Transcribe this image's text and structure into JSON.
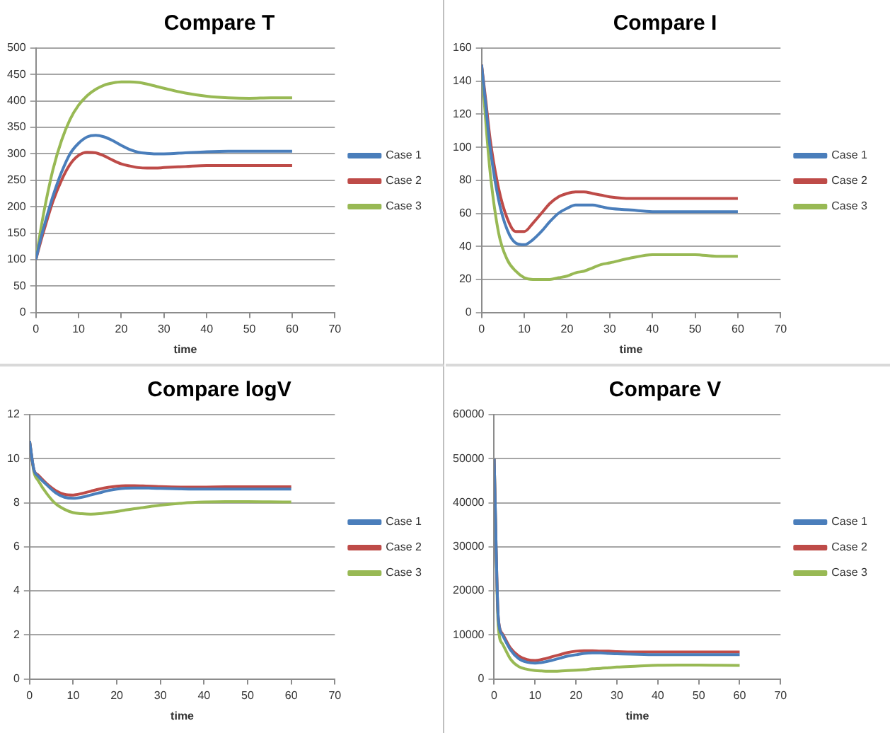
{
  "chart_data": [
    {
      "type": "line",
      "title": "Compare T",
      "xlabel": "time",
      "x": [
        0,
        1,
        2,
        4,
        6,
        8,
        10,
        12,
        14,
        16,
        18,
        20,
        22,
        24,
        26,
        28,
        30,
        35,
        40,
        45,
        50,
        55,
        60
      ],
      "xlim": [
        0,
        70
      ],
      "xticks": [
        0,
        10,
        20,
        30,
        40,
        50,
        60,
        70
      ],
      "ylim": [
        0,
        500
      ],
      "yticks": [
        0,
        50,
        100,
        150,
        200,
        250,
        300,
        350,
        400,
        450,
        500
      ],
      "grid": "y",
      "legend": "right",
      "series": [
        {
          "name": "Case 1",
          "color": "#4a7ebb",
          "values": [
            100,
            135,
            165,
            220,
            265,
            300,
            320,
            332,
            335,
            332,
            325,
            316,
            308,
            303,
            301,
            300,
            300,
            302,
            304,
            305,
            305,
            305,
            305
          ]
        },
        {
          "name": "Case 2",
          "color": "#be4b48",
          "values": [
            100,
            130,
            158,
            210,
            250,
            280,
            297,
            303,
            302,
            296,
            288,
            281,
            277,
            274,
            273,
            273,
            274,
            276,
            278,
            278,
            278,
            278,
            278
          ]
        },
        {
          "name": "Case 3",
          "color": "#98b954",
          "values": [
            100,
            150,
            195,
            270,
            325,
            365,
            392,
            410,
            422,
            430,
            434,
            436,
            436,
            435,
            432,
            428,
            424,
            415,
            409,
            406,
            405,
            406,
            406
          ]
        }
      ]
    },
    {
      "type": "line",
      "title": "Compare I",
      "xlabel": "time",
      "x": [
        0,
        1,
        2,
        4,
        6,
        8,
        10,
        12,
        14,
        16,
        18,
        20,
        22,
        24,
        26,
        28,
        30,
        35,
        40,
        45,
        50,
        55,
        60
      ],
      "xlim": [
        0,
        70
      ],
      "xticks": [
        0,
        10,
        20,
        30,
        40,
        50,
        60,
        70
      ],
      "ylim": [
        0,
        160
      ],
      "yticks": [
        0,
        20,
        40,
        60,
        80,
        100,
        120,
        140,
        160
      ],
      "grid": "y",
      "legend": "right",
      "series": [
        {
          "name": "Case 1",
          "color": "#4a7ebb",
          "values": [
            150,
            125,
            100,
            68,
            50,
            42,
            41,
            44,
            49,
            55,
            60,
            63,
            65,
            65,
            65,
            64,
            63,
            62,
            61,
            61,
            61,
            61,
            61
          ]
        },
        {
          "name": "Case 2",
          "color": "#be4b48",
          "values": [
            150,
            128,
            105,
            75,
            57,
            49,
            49,
            54,
            60,
            66,
            70,
            72,
            73,
            73,
            72,
            71,
            70,
            69,
            69,
            69,
            69,
            69,
            69
          ]
        },
        {
          "name": "Case 3",
          "color": "#98b954",
          "values": [
            150,
            115,
            85,
            48,
            32,
            25,
            21,
            20,
            20,
            20,
            21,
            22,
            24,
            25,
            27,
            29,
            30,
            33,
            35,
            35,
            35,
            34,
            34
          ]
        }
      ]
    },
    {
      "type": "line",
      "title": "Compare logV",
      "xlabel": "time",
      "x": [
        0,
        1,
        2,
        4,
        6,
        8,
        10,
        12,
        14,
        16,
        18,
        20,
        22,
        24,
        26,
        28,
        30,
        35,
        40,
        45,
        50,
        55,
        60
      ],
      "xlim": [
        0,
        70
      ],
      "xticks": [
        0,
        10,
        20,
        30,
        40,
        50,
        60,
        70
      ],
      "ylim": [
        0,
        12
      ],
      "yticks": [
        0,
        2,
        4,
        6,
        8,
        10,
        12
      ],
      "grid": "y",
      "legend": "right",
      "series": [
        {
          "name": "Case 1",
          "color": "#4a7ebb",
          "values": [
            10.8,
            9.5,
            9.2,
            8.8,
            8.45,
            8.25,
            8.2,
            8.25,
            8.35,
            8.45,
            8.55,
            8.62,
            8.66,
            8.67,
            8.67,
            8.66,
            8.65,
            8.63,
            8.62,
            8.62,
            8.62,
            8.62,
            8.62
          ]
        },
        {
          "name": "Case 2",
          "color": "#be4b48",
          "values": [
            10.8,
            9.5,
            9.25,
            8.85,
            8.55,
            8.38,
            8.35,
            8.42,
            8.52,
            8.62,
            8.7,
            8.75,
            8.77,
            8.77,
            8.76,
            8.75,
            8.73,
            8.71,
            8.71,
            8.72,
            8.72,
            8.72,
            8.72
          ]
        },
        {
          "name": "Case 3",
          "color": "#98b954",
          "values": [
            10.8,
            9.4,
            9.0,
            8.4,
            7.95,
            7.7,
            7.55,
            7.5,
            7.48,
            7.5,
            7.55,
            7.6,
            7.67,
            7.73,
            7.78,
            7.84,
            7.89,
            7.98,
            8.03,
            8.05,
            8.05,
            8.04,
            8.03
          ]
        }
      ]
    },
    {
      "type": "line",
      "title": "Compare V",
      "xlabel": "time",
      "x": [
        0,
        1,
        2,
        4,
        6,
        8,
        10,
        12,
        14,
        16,
        18,
        20,
        22,
        24,
        26,
        28,
        30,
        35,
        40,
        45,
        50,
        55,
        60
      ],
      "xlim": [
        0,
        70
      ],
      "xticks": [
        0,
        10,
        20,
        30,
        40,
        50,
        60,
        70
      ],
      "ylim": [
        0,
        60000
      ],
      "yticks": [
        0,
        10000,
        20000,
        30000,
        40000,
        50000,
        60000
      ],
      "grid": "y",
      "legend": "right",
      "series": [
        {
          "name": "Case 1",
          "color": "#4a7ebb",
          "values": [
            50000,
            14000,
            10000,
            6600,
            4600,
            3800,
            3600,
            3800,
            4200,
            4700,
            5200,
            5500,
            5800,
            5900,
            5900,
            5800,
            5700,
            5600,
            5500,
            5500,
            5500,
            5500,
            5500
          ]
        },
        {
          "name": "Case 2",
          "color": "#be4b48",
          "values": [
            50000,
            14000,
            10300,
            7000,
            5200,
            4400,
            4200,
            4500,
            5000,
            5500,
            6000,
            6300,
            6400,
            6400,
            6300,
            6300,
            6200,
            6100,
            6100,
            6100,
            6100,
            6100,
            6100
          ]
        },
        {
          "name": "Case 3",
          "color": "#98b954",
          "values": [
            50000,
            12000,
            8000,
            4500,
            2800,
            2200,
            1900,
            1800,
            1750,
            1800,
            1900,
            2000,
            2100,
            2300,
            2400,
            2550,
            2700,
            2900,
            3100,
            3150,
            3150,
            3100,
            3050
          ]
        }
      ]
    }
  ]
}
